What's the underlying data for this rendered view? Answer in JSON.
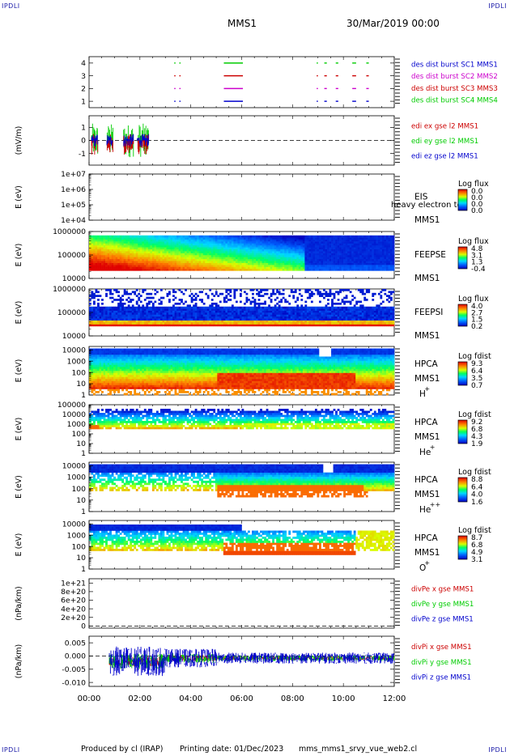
{
  "header": {
    "corner_left": "IPDLI",
    "corner_right": "IPDLI",
    "bottom_left": "IPDLI",
    "bottom_right": "IPDLI",
    "spacecraft": "MMS1",
    "datetime": "30/Mar/2019 00:00"
  },
  "footer": {
    "produced": "Produced by cl (IRAP)",
    "printing": "Printing date: 01/Dec/2023",
    "file": "mms_mms1_srvy_vue_web2.cl"
  },
  "colors": {
    "blue": "#0000cc",
    "red": "#cc0000",
    "green": "#00cc00",
    "magenta": "#cc00cc"
  },
  "chart_data": [
    {
      "type": "line",
      "panel": "burst",
      "ylabel": "",
      "yticks": [
        "1",
        "2",
        "3",
        "4"
      ],
      "ylim": [
        0.5,
        4.5
      ],
      "legend": [
        {
          "name": "des dist burst SC1 MMS1",
          "color": "#0000cc"
        },
        {
          "name": "des dist burst SC2 MMS2",
          "color": "#cc00cc"
        },
        {
          "name": "des dist burst SC3 MMS3",
          "color": "#cc0000"
        },
        {
          "name": "des dist burst SC4 MMS4",
          "color": "#00cc00"
        }
      ],
      "segments": [
        {
          "y": 4,
          "intervals": [
            [
              3.35,
              3.4
            ],
            [
              3.55,
              3.6
            ],
            [
              5.3,
              6.05
            ],
            [
              8.95,
              9.0
            ],
            [
              9.25,
              9.35
            ],
            [
              9.7,
              9.8
            ],
            [
              10.35,
              10.5
            ],
            [
              10.9,
              11.0
            ]
          ]
        },
        {
          "y": 3,
          "intervals": [
            [
              3.35,
              3.4
            ],
            [
              3.55,
              3.6
            ],
            [
              5.3,
              6.05
            ],
            [
              8.95,
              9.0
            ],
            [
              9.25,
              9.35
            ],
            [
              9.7,
              9.8
            ],
            [
              10.35,
              10.5
            ],
            [
              10.9,
              11.0
            ]
          ]
        },
        {
          "y": 2,
          "intervals": [
            [
              3.35,
              3.4
            ],
            [
              3.55,
              3.6
            ],
            [
              5.3,
              6.05
            ],
            [
              8.95,
              9.0
            ],
            [
              9.25,
              9.35
            ],
            [
              9.7,
              9.8
            ],
            [
              10.35,
              10.5
            ],
            [
              10.9,
              11.0
            ]
          ]
        },
        {
          "y": 1,
          "intervals": [
            [
              3.35,
              3.4
            ],
            [
              3.55,
              3.6
            ],
            [
              5.3,
              6.05
            ],
            [
              8.95,
              9.0
            ],
            [
              9.25,
              9.35
            ],
            [
              9.7,
              9.8
            ],
            [
              10.35,
              10.5
            ],
            [
              10.9,
              11.0
            ]
          ]
        }
      ]
    },
    {
      "type": "line",
      "panel": "edi",
      "ylabel": "(mV/m)",
      "yticks": [
        "-1",
        "0",
        "1"
      ],
      "ylim": [
        -1.9,
        1.9
      ],
      "legend": [
        {
          "name": "edi ex gse l2 MMS1",
          "color": "#cc0000"
        },
        {
          "name": "edi ey gse l2 MMS1",
          "color": "#00cc00"
        },
        {
          "name": "edi ez gse l2 MMS1",
          "color": "#0000cc"
        }
      ],
      "time_range_h": [
        0.1,
        2.5
      ],
      "zero_line": true
    },
    {
      "type": "heatmap",
      "panel": "eis",
      "ylabel": "E (eV)",
      "yticks": [
        "1e+04",
        "1e+05",
        "1e+06",
        "1e+07"
      ],
      "ylim_log": [
        4,
        7
      ],
      "instrument": [
        "EIS",
        "MMS1"
      ],
      "overlay_text": "heavy electron to",
      "colorbar": {
        "title": "Log flux",
        "ticks": [
          "0.0",
          "0.0",
          "0.0",
          "0.0"
        ]
      },
      "empty": true
    },
    {
      "type": "heatmap",
      "panel": "feeps-e",
      "ylabel": "E (eV)",
      "yticks": [
        "10000",
        "100000",
        "1000000"
      ],
      "ylim_log": [
        4,
        6
      ],
      "instrument": [
        "FEEPSE",
        "MMS1"
      ],
      "colorbar": {
        "title": "Log flux",
        "ticks": [
          "4.8",
          "3.1",
          "1.3",
          "-0.4"
        ]
      }
    },
    {
      "type": "heatmap",
      "panel": "feeps-i",
      "ylabel": "E (eV)",
      "yticks": [
        "10000",
        "100000",
        "1000000"
      ],
      "ylim_log": [
        4,
        6
      ],
      "instrument": [
        "FEEPSI",
        "MMS1"
      ],
      "colorbar": {
        "title": "Log flux",
        "ticks": [
          "4.0",
          "2.7",
          "1.5",
          "0.2"
        ]
      }
    },
    {
      "type": "heatmap",
      "panel": "hpca-h",
      "ylabel": "E (eV)",
      "yticks": [
        "1",
        "10",
        "100",
        "1000",
        "10000"
      ],
      "ylim_log": [
        0,
        4.3
      ],
      "instrument": [
        "HPCA",
        "MMS1"
      ],
      "species": "H",
      "species_sup": "+",
      "colorbar": {
        "title": "Log fdist",
        "ticks": [
          "9.3",
          "6.4",
          "3.5",
          "0.7"
        ]
      }
    },
    {
      "type": "heatmap",
      "panel": "hpca-he",
      "ylabel": "E (eV)",
      "yticks": [
        "1",
        "10",
        "100",
        "1000",
        "10000",
        "100000"
      ],
      "ylim_log": [
        0,
        5
      ],
      "instrument": [
        "HPCA",
        "MMS1"
      ],
      "species": "He",
      "species_sup": "+",
      "colorbar": {
        "title": "Log fdist",
        "ticks": [
          "9.2",
          "6.8",
          "4.3",
          "1.9"
        ]
      }
    },
    {
      "type": "heatmap",
      "panel": "hpca-hepp",
      "ylabel": "E (eV)",
      "yticks": [
        "1",
        "10",
        "100",
        "1000",
        "10000"
      ],
      "ylim_log": [
        0,
        4.3
      ],
      "instrument": [
        "HPCA",
        "MMS1"
      ],
      "species": "He",
      "species_sup": "++",
      "colorbar": {
        "title": "Log fdist",
        "ticks": [
          "8.8",
          "6.4",
          "4.0",
          "1.6"
        ]
      }
    },
    {
      "type": "heatmap",
      "panel": "hpca-o",
      "ylabel": "E (eV)",
      "yticks": [
        "1",
        "10",
        "100",
        "1000",
        "10000"
      ],
      "ylim_log": [
        0,
        4.3
      ],
      "instrument": [
        "HPCA",
        "MMS1"
      ],
      "species": "O",
      "species_sup": "+",
      "colorbar": {
        "title": "Log fdist",
        "ticks": [
          "8.7",
          "6.8",
          "4.9",
          "3.1"
        ]
      }
    },
    {
      "type": "line",
      "panel": "divpe",
      "ylabel": "(nPa/km)",
      "yticks": [
        "0",
        "2e+20",
        "4e+20",
        "6e+20",
        "8e+20",
        "1e+21"
      ],
      "ylim": [
        -5e+19,
        1.1e+21
      ],
      "legend": [
        {
          "name": "divPe x gse MMS1",
          "color": "#cc0000"
        },
        {
          "name": "divPe y gse MMS1",
          "color": "#00cc00"
        },
        {
          "name": "divPe z gse MMS1",
          "color": "#0000cc"
        }
      ],
      "zero_line": true
    },
    {
      "type": "line",
      "panel": "divpi",
      "ylabel": "(nPa/km)",
      "yticks": [
        "-0.010",
        "-0.005",
        "0.000",
        "0.005"
      ],
      "ylim": [
        -0.0115,
        0.0075
      ],
      "legend": [
        {
          "name": "divPi x gse MMS1",
          "color": "#cc0000"
        },
        {
          "name": "divPi y gse MMS1",
          "color": "#00cc00"
        },
        {
          "name": "divPi z gse MMS1",
          "color": "#0000cc"
        }
      ],
      "time_range_h": [
        0.8,
        12.0
      ],
      "zero_line": true
    }
  ],
  "xaxis": {
    "ticks": [
      "00:00",
      "02:00",
      "04:00",
      "06:00",
      "08:00",
      "10:00",
      "12:00"
    ],
    "range_h": [
      0,
      12
    ]
  }
}
